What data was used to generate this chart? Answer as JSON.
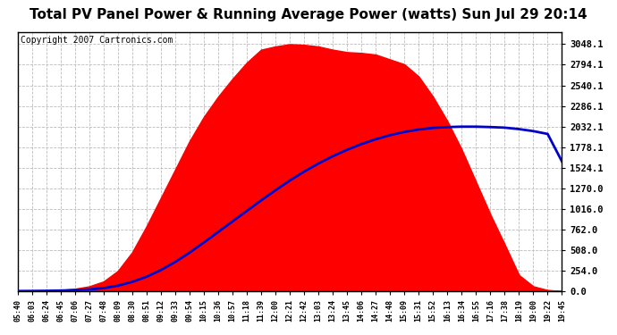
{
  "title": "Total PV Panel Power & Running Average Power (watts) Sun Jul 29 20:14",
  "copyright": "Copyright 2007 Cartronics.com",
  "y_ticks": [
    0.0,
    254.0,
    508.0,
    762.0,
    1016.0,
    1270.0,
    1524.1,
    1778.1,
    2032.1,
    2286.1,
    2540.1,
    2794.1,
    3048.1
  ],
  "ymax": 3200,
  "background_color": "#ffffff",
  "fill_color": "#ff0000",
  "avg_line_color": "#0000cc",
  "grid_color": "#bbbbbb",
  "title_fontsize": 11,
  "copyright_fontsize": 7,
  "x_label_fontsize": 6,
  "y_label_fontsize": 7.5,
  "x_tick_labels": [
    "05:40",
    "06:03",
    "06:24",
    "06:45",
    "07:06",
    "07:27",
    "07:48",
    "08:09",
    "08:30",
    "08:51",
    "09:12",
    "09:33",
    "09:54",
    "10:15",
    "10:36",
    "10:57",
    "11:18",
    "11:39",
    "12:00",
    "12:21",
    "12:42",
    "13:03",
    "13:24",
    "13:45",
    "14:06",
    "14:27",
    "14:48",
    "15:09",
    "15:31",
    "15:52",
    "16:13",
    "16:34",
    "16:55",
    "17:16",
    "17:38",
    "18:19",
    "19:00",
    "19:22",
    "19:45"
  ],
  "pv_data_y": [
    2,
    5,
    8,
    15,
    30,
    60,
    120,
    250,
    480,
    800,
    1150,
    1500,
    1850,
    2150,
    2400,
    2620,
    2820,
    2980,
    3020,
    3048,
    3040,
    3020,
    2980,
    2950,
    2940,
    2920,
    2860,
    2800,
    2650,
    2400,
    2100,
    1750,
    1350,
    950,
    580,
    200,
    60,
    15,
    2
  ],
  "avg_data_y": [
    2,
    3,
    5,
    8,
    13,
    22,
    38,
    68,
    115,
    178,
    260,
    360,
    475,
    600,
    730,
    860,
    990,
    1120,
    1245,
    1365,
    1475,
    1575,
    1665,
    1745,
    1815,
    1875,
    1925,
    1965,
    1995,
    2015,
    2025,
    2030,
    2030,
    2025,
    2018,
    2000,
    1975,
    1940,
    1600
  ]
}
